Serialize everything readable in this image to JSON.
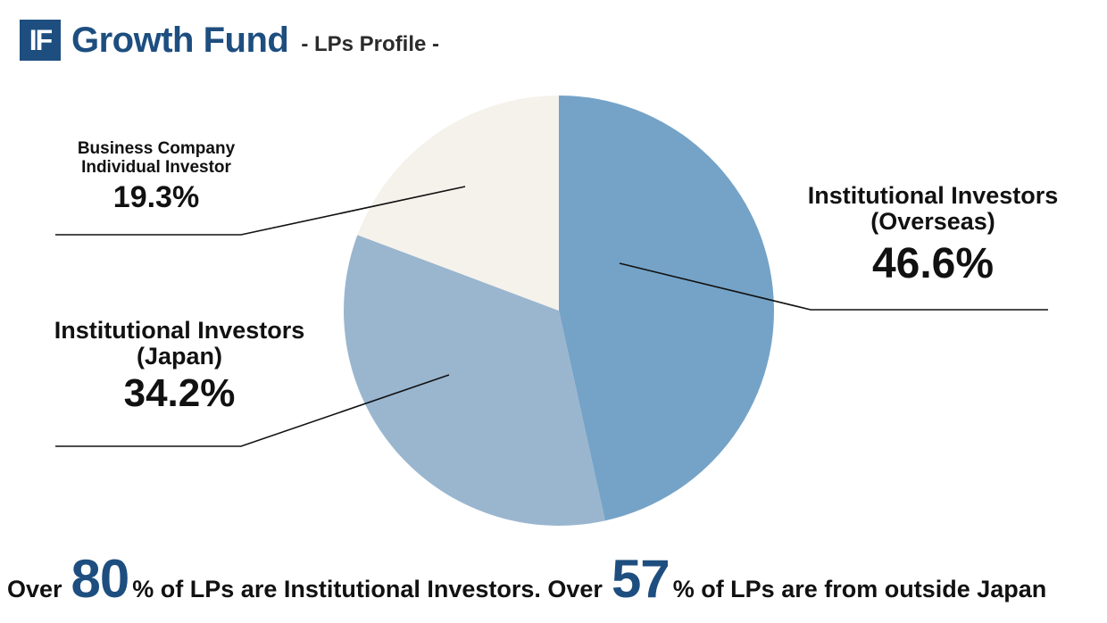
{
  "header": {
    "logo_text": "IF",
    "title": "Growth Fund",
    "subtitle": "- LPs Profile -"
  },
  "colors": {
    "brand": "#1d4e7f",
    "slice_overseas": "#75a3c7",
    "slice_japan": "#9ab6cf",
    "slice_business": "#f5f2eb",
    "leader_line": "#111111"
  },
  "chart_data": {
    "type": "pie",
    "title": "",
    "slices": [
      {
        "label_line1": "Institutional Investors",
        "label_line2": "(Overseas)",
        "value": 46.6,
        "value_label": "46.6%",
        "color": "#75a3c7"
      },
      {
        "label_line1": "Institutional Investors",
        "label_line2": "(Japan)",
        "value": 34.2,
        "value_label": "34.2%",
        "color": "#9ab6cf"
      },
      {
        "label_line1": "Business Company",
        "label_line2": "Individual Investor",
        "value": 19.3,
        "value_label": "19.3%",
        "color": "#f5f2eb"
      }
    ],
    "start": "12 o'clock",
    "direction": "clockwise",
    "legend": "none"
  },
  "footer": {
    "part1": "Over",
    "num1": "80",
    "part2": "% of LPs are Institutional Investors. Over",
    "num2": "57",
    "part3": "% of LPs are from outside Japan"
  }
}
